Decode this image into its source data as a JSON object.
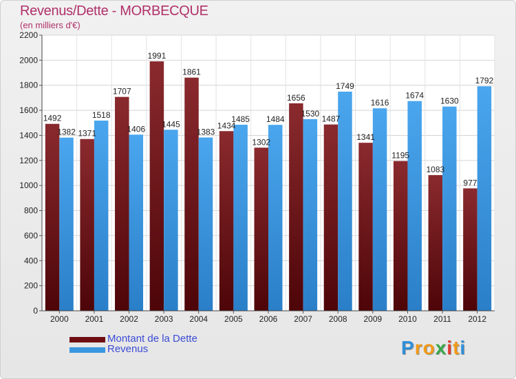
{
  "header": {
    "title": "Revenus/Dette - MORBECQUE",
    "subtitle": "(en milliers d'€)"
  },
  "chart_data": {
    "type": "bar",
    "title": "Revenus/Dette - MORBECQUE",
    "ylabel": "(en milliers d'€)",
    "xlabel": "",
    "ylim": [
      0,
      2200
    ],
    "yticks": [
      0,
      200,
      400,
      600,
      800,
      1000,
      1200,
      1400,
      1600,
      1800,
      2000,
      2200
    ],
    "grid": true,
    "categories": [
      "2000",
      "2001",
      "2002",
      "2003",
      "2004",
      "2005",
      "2006",
      "2007",
      "2008",
      "2009",
      "2010",
      "2011",
      "2012"
    ],
    "series": [
      {
        "name": "Montant de la Dette",
        "color": "#6e0d12",
        "values": [
          1492,
          1371,
          1707,
          1991,
          1861,
          1434,
          1302,
          1656,
          1487,
          1341,
          1195,
          1083,
          977
        ]
      },
      {
        "name": "Revenus",
        "color": "#3b96e0",
        "values": [
          1382,
          1518,
          1406,
          1445,
          1383,
          1485,
          1484,
          1530,
          1749,
          1616,
          1674,
          1630,
          1792
        ]
      }
    ],
    "data_labels": {
      "Montant de la Dette": [
        "1492",
        "1371",
        "1707",
        "1991",
        "1861",
        "1434",
        "1302",
        "1656",
        "1487",
        "1341",
        "1195",
        "1083",
        "977"
      ],
      "Revenus": [
        "1382",
        "1518",
        "1406",
        "1445",
        "1383",
        "1485",
        "1484",
        "1530",
        "1749",
        "1616",
        "1674",
        "1630",
        "1792"
      ]
    },
    "legend": "bottom-left"
  },
  "legend": {
    "items": [
      {
        "label": "Montant de la Dette",
        "color": "#6e0d12"
      },
      {
        "label": "Revenus",
        "color": "#3b96e0"
      }
    ]
  },
  "logo": {
    "letters": [
      "P",
      "r",
      "o",
      "x",
      "i",
      "t",
      "i"
    ],
    "colors": [
      "#2f8fd8",
      "#f29a1a",
      "#f29a1a",
      "#3aa845",
      "#e23a2e",
      "#f29a1a",
      "#2f8fd8"
    ]
  }
}
